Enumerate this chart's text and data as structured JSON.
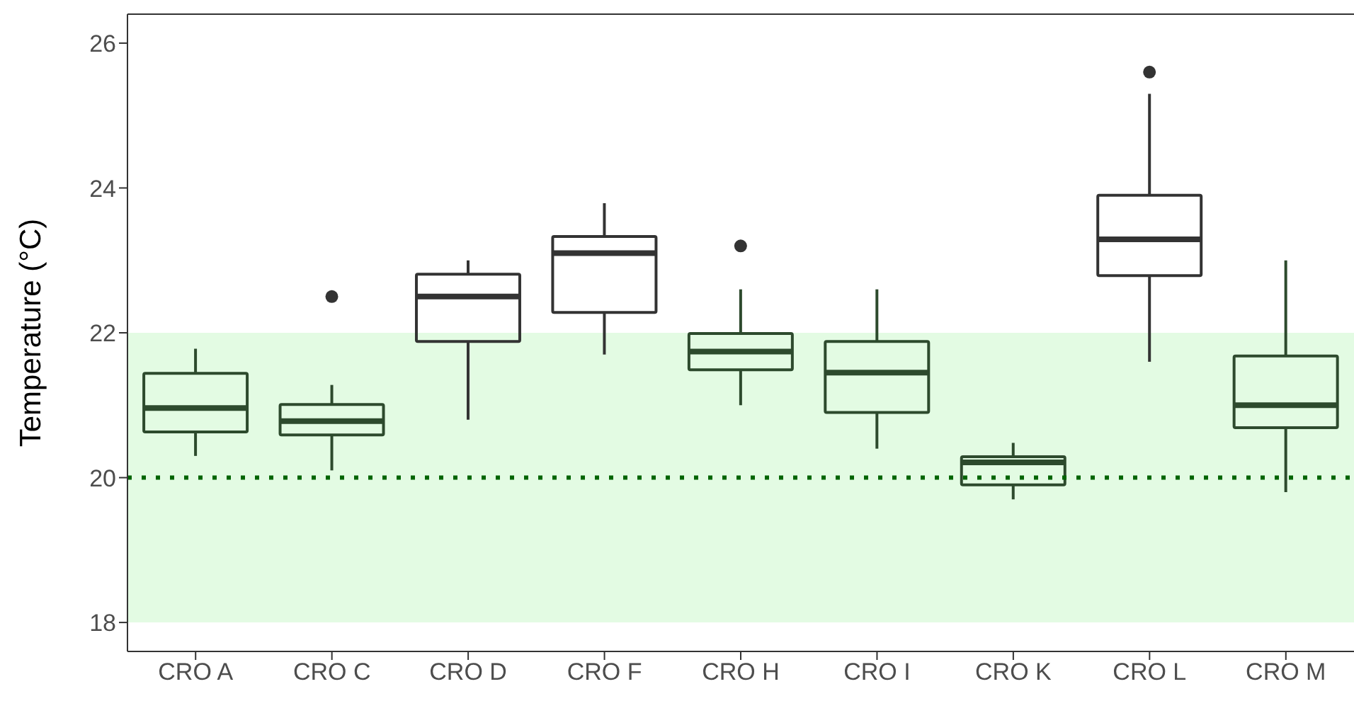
{
  "chart_data": {
    "type": "box",
    "ylabel": "Temperature (°C)",
    "categories": [
      "CRO A",
      "CRO C",
      "CRO D",
      "CRO F",
      "CRO H",
      "CRO I",
      "CRO K",
      "CRO L",
      "CRO M"
    ],
    "boxes": [
      {
        "low": 20.3,
        "q1": 20.63,
        "median": 20.96,
        "q3": 21.44,
        "high": 21.78
      },
      {
        "low": 20.1,
        "q1": 20.59,
        "median": 20.78,
        "q3": 21.01,
        "high": 21.28,
        "outliers": [
          22.5
        ]
      },
      {
        "low": 20.8,
        "q1": 21.88,
        "median": 22.5,
        "q3": 22.81,
        "high": 23.0
      },
      {
        "low": 21.7,
        "q1": 22.28,
        "median": 23.1,
        "q3": 23.33,
        "high": 23.79
      },
      {
        "low": 21.0,
        "q1": 21.49,
        "median": 21.74,
        "q3": 21.99,
        "high": 22.6,
        "outliers": [
          23.2
        ]
      },
      {
        "low": 20.4,
        "q1": 20.9,
        "median": 21.45,
        "q3": 21.88,
        "high": 22.6
      },
      {
        "low": 19.7,
        "q1": 19.9,
        "median": 20.21,
        "q3": 20.29,
        "high": 20.48
      },
      {
        "low": 21.6,
        "q1": 22.79,
        "median": 23.29,
        "q3": 23.9,
        "high": 25.3,
        "outliers": [
          25.6
        ]
      },
      {
        "low": 19.8,
        "q1": 20.69,
        "median": 21.0,
        "q3": 21.68,
        "high": 23.0
      }
    ],
    "colors": [
      "#2d4a2d",
      "#2d4a2d",
      "#333333",
      "#333333",
      "#2d4a2d",
      "#2d4a2d",
      "#2d4a2d",
      "#333333",
      "#2d4a2d"
    ],
    "ylim": [
      17.6,
      26.4
    ],
    "yticks": [
      18,
      20,
      22,
      24,
      26
    ],
    "grid": false,
    "ref_lines": [
      {
        "axis": "y",
        "value": 20,
        "color": "#006400",
        "line_style": "dotted"
      }
    ],
    "bands": [
      {
        "axis": "y",
        "from": 18,
        "to": 22,
        "color": "#e3fbe3"
      }
    ]
  }
}
